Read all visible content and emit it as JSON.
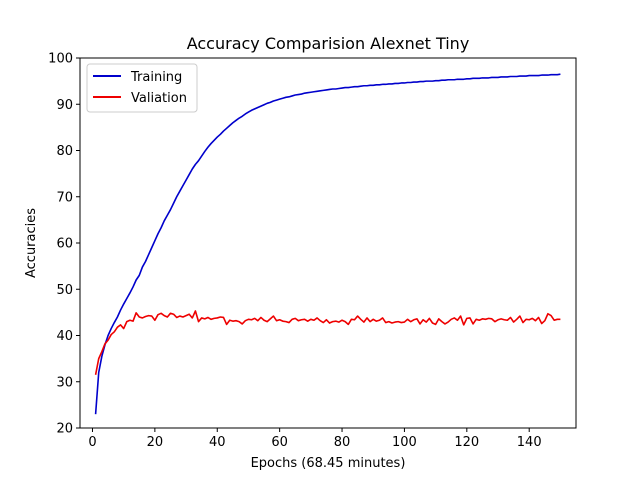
{
  "chart_data": {
    "type": "line",
    "title": "Accuracy Comparision Alexnet Tiny",
    "xlabel": "Epochs (68.45 minutes)",
    "ylabel": "Accuracies",
    "xlim": [
      -4,
      155
    ],
    "ylim": [
      20,
      100
    ],
    "xticks": [
      0,
      20,
      40,
      60,
      80,
      100,
      120,
      140
    ],
    "yticks": [
      20,
      30,
      40,
      50,
      60,
      70,
      80,
      90,
      100
    ],
    "grid": false,
    "legend_position": "top-left",
    "series": [
      {
        "name": "Training",
        "color": "#0000cc",
        "x": [
          1,
          2,
          3,
          4,
          5,
          6,
          7,
          8,
          9,
          10,
          11,
          12,
          13,
          14,
          15,
          16,
          17,
          18,
          19,
          20,
          21,
          22,
          23,
          24,
          25,
          26,
          27,
          28,
          29,
          30,
          31,
          32,
          33,
          34,
          35,
          36,
          37,
          38,
          39,
          40,
          41,
          42,
          43,
          44,
          45,
          46,
          47,
          48,
          49,
          50,
          51,
          52,
          53,
          54,
          55,
          56,
          57,
          58,
          59,
          60,
          61,
          62,
          63,
          64,
          65,
          66,
          67,
          68,
          69,
          70,
          71,
          72,
          73,
          74,
          75,
          76,
          77,
          78,
          79,
          80,
          81,
          82,
          83,
          84,
          85,
          86,
          87,
          88,
          89,
          90,
          91,
          92,
          93,
          94,
          95,
          96,
          97,
          98,
          99,
          100,
          101,
          102,
          103,
          104,
          105,
          106,
          107,
          108,
          109,
          110,
          111,
          112,
          113,
          114,
          115,
          116,
          117,
          118,
          119,
          120,
          121,
          122,
          123,
          124,
          125,
          126,
          127,
          128,
          129,
          130,
          131,
          132,
          133,
          134,
          135,
          136,
          137,
          138,
          139,
          140,
          141,
          142,
          143,
          144,
          145,
          146,
          147,
          148,
          149,
          150
        ],
        "values": [
          23.0,
          32.0,
          35.5,
          38.0,
          40.0,
          41.5,
          42.8,
          44.0,
          45.5,
          46.8,
          48.0,
          49.2,
          50.5,
          52.0,
          53.0,
          54.8,
          56.0,
          57.5,
          59.0,
          60.5,
          62.0,
          63.3,
          64.8,
          66.0,
          67.2,
          68.6,
          70.0,
          71.2,
          72.4,
          73.6,
          74.8,
          76.0,
          77.0,
          77.8,
          78.8,
          79.8,
          80.7,
          81.5,
          82.2,
          82.9,
          83.5,
          84.2,
          84.8,
          85.4,
          86.0,
          86.5,
          87.0,
          87.4,
          87.9,
          88.3,
          88.7,
          89.0,
          89.3,
          89.6,
          89.9,
          90.2,
          90.4,
          90.7,
          90.9,
          91.1,
          91.3,
          91.5,
          91.6,
          91.8,
          92.0,
          92.1,
          92.2,
          92.4,
          92.5,
          92.6,
          92.7,
          92.8,
          92.9,
          93.0,
          93.1,
          93.2,
          93.3,
          93.3,
          93.4,
          93.5,
          93.6,
          93.6,
          93.7,
          93.8,
          93.8,
          93.9,
          94.0,
          94.0,
          94.1,
          94.1,
          94.2,
          94.2,
          94.3,
          94.3,
          94.4,
          94.4,
          94.5,
          94.5,
          94.6,
          94.6,
          94.7,
          94.7,
          94.8,
          94.8,
          94.9,
          94.9,
          95.0,
          95.0,
          95.0,
          95.1,
          95.1,
          95.2,
          95.2,
          95.3,
          95.3,
          95.3,
          95.4,
          95.4,
          95.4,
          95.5,
          95.5,
          95.6,
          95.6,
          95.6,
          95.7,
          95.7,
          95.7,
          95.8,
          95.8,
          95.8,
          95.9,
          95.9,
          95.9,
          96.0,
          96.0,
          96.0,
          96.1,
          96.1,
          96.1,
          96.2,
          96.2,
          96.2,
          96.2,
          96.3,
          96.3,
          96.3,
          96.4,
          96.4,
          96.4,
          96.5
        ]
      },
      {
        "name": "Valiation",
        "color": "#ee0000",
        "x": [
          1,
          2,
          3,
          4,
          5,
          6,
          7,
          8,
          9,
          10,
          11,
          12,
          13,
          14,
          15,
          16,
          17,
          18,
          19,
          20,
          21,
          22,
          23,
          24,
          25,
          26,
          27,
          28,
          29,
          30,
          31,
          32,
          33,
          34,
          35,
          36,
          37,
          38,
          39,
          40,
          41,
          42,
          43,
          44,
          45,
          46,
          47,
          48,
          49,
          50,
          51,
          52,
          53,
          54,
          55,
          56,
          57,
          58,
          59,
          60,
          61,
          62,
          63,
          64,
          65,
          66,
          67,
          68,
          69,
          70,
          71,
          72,
          73,
          74,
          75,
          76,
          77,
          78,
          79,
          80,
          81,
          82,
          83,
          84,
          85,
          86,
          87,
          88,
          89,
          90,
          91,
          92,
          93,
          94,
          95,
          96,
          97,
          98,
          99,
          100,
          101,
          102,
          103,
          104,
          105,
          106,
          107,
          108,
          109,
          110,
          111,
          112,
          113,
          114,
          115,
          116,
          117,
          118,
          119,
          120,
          121,
          122,
          123,
          124,
          125,
          126,
          127,
          128,
          129,
          130,
          131,
          132,
          133,
          134,
          135,
          136,
          137,
          138,
          139,
          140,
          141,
          142,
          143,
          144,
          145,
          146,
          147,
          148,
          149,
          150
        ],
        "values": [
          31.5,
          35.0,
          36.5,
          38.2,
          39.0,
          40.2,
          40.8,
          41.8,
          42.3,
          41.5,
          43.0,
          43.3,
          43.1,
          44.9,
          44.0,
          43.8,
          44.1,
          44.3,
          44.2,
          43.3,
          44.5,
          44.8,
          44.3,
          44.0,
          44.8,
          44.6,
          43.9,
          44.2,
          44.0,
          44.3,
          44.6,
          43.8,
          45.3,
          43.0,
          43.8,
          43.6,
          43.9,
          43.5,
          43.7,
          43.8,
          44.0,
          43.9,
          42.4,
          43.3,
          43.1,
          43.2,
          43.0,
          42.5,
          43.2,
          43.5,
          43.4,
          43.7,
          43.2,
          43.9,
          43.3,
          43.0,
          43.6,
          44.2,
          43.2,
          43.4,
          43.1,
          43.0,
          42.8,
          43.5,
          43.7,
          43.2,
          43.4,
          43.5,
          43.1,
          43.5,
          43.3,
          43.8,
          43.2,
          42.8,
          43.4,
          42.7,
          43.0,
          43.1,
          42.9,
          43.3,
          43.0,
          42.4,
          43.5,
          43.4,
          44.2,
          43.5,
          42.9,
          43.8,
          43.0,
          43.5,
          43.1,
          43.3,
          43.8,
          42.8,
          43.0,
          42.7,
          42.9,
          43.0,
          42.8,
          42.9,
          43.5,
          43.0,
          43.4,
          43.6,
          42.5,
          43.4,
          42.9,
          43.7,
          42.7,
          42.4,
          43.6,
          43.0,
          42.5,
          42.9,
          43.5,
          43.8,
          43.3,
          44.2,
          42.3,
          43.7,
          43.8,
          42.5,
          43.5,
          43.3,
          43.6,
          43.5,
          43.7,
          43.6,
          43.0,
          43.4,
          43.6,
          43.4,
          43.3,
          43.9,
          42.9,
          43.5,
          44.2,
          42.8,
          43.5,
          43.4,
          43.7,
          43.2,
          43.9,
          42.6,
          43.2,
          44.7,
          44.3,
          43.3,
          43.5,
          43.5
        ]
      }
    ]
  }
}
